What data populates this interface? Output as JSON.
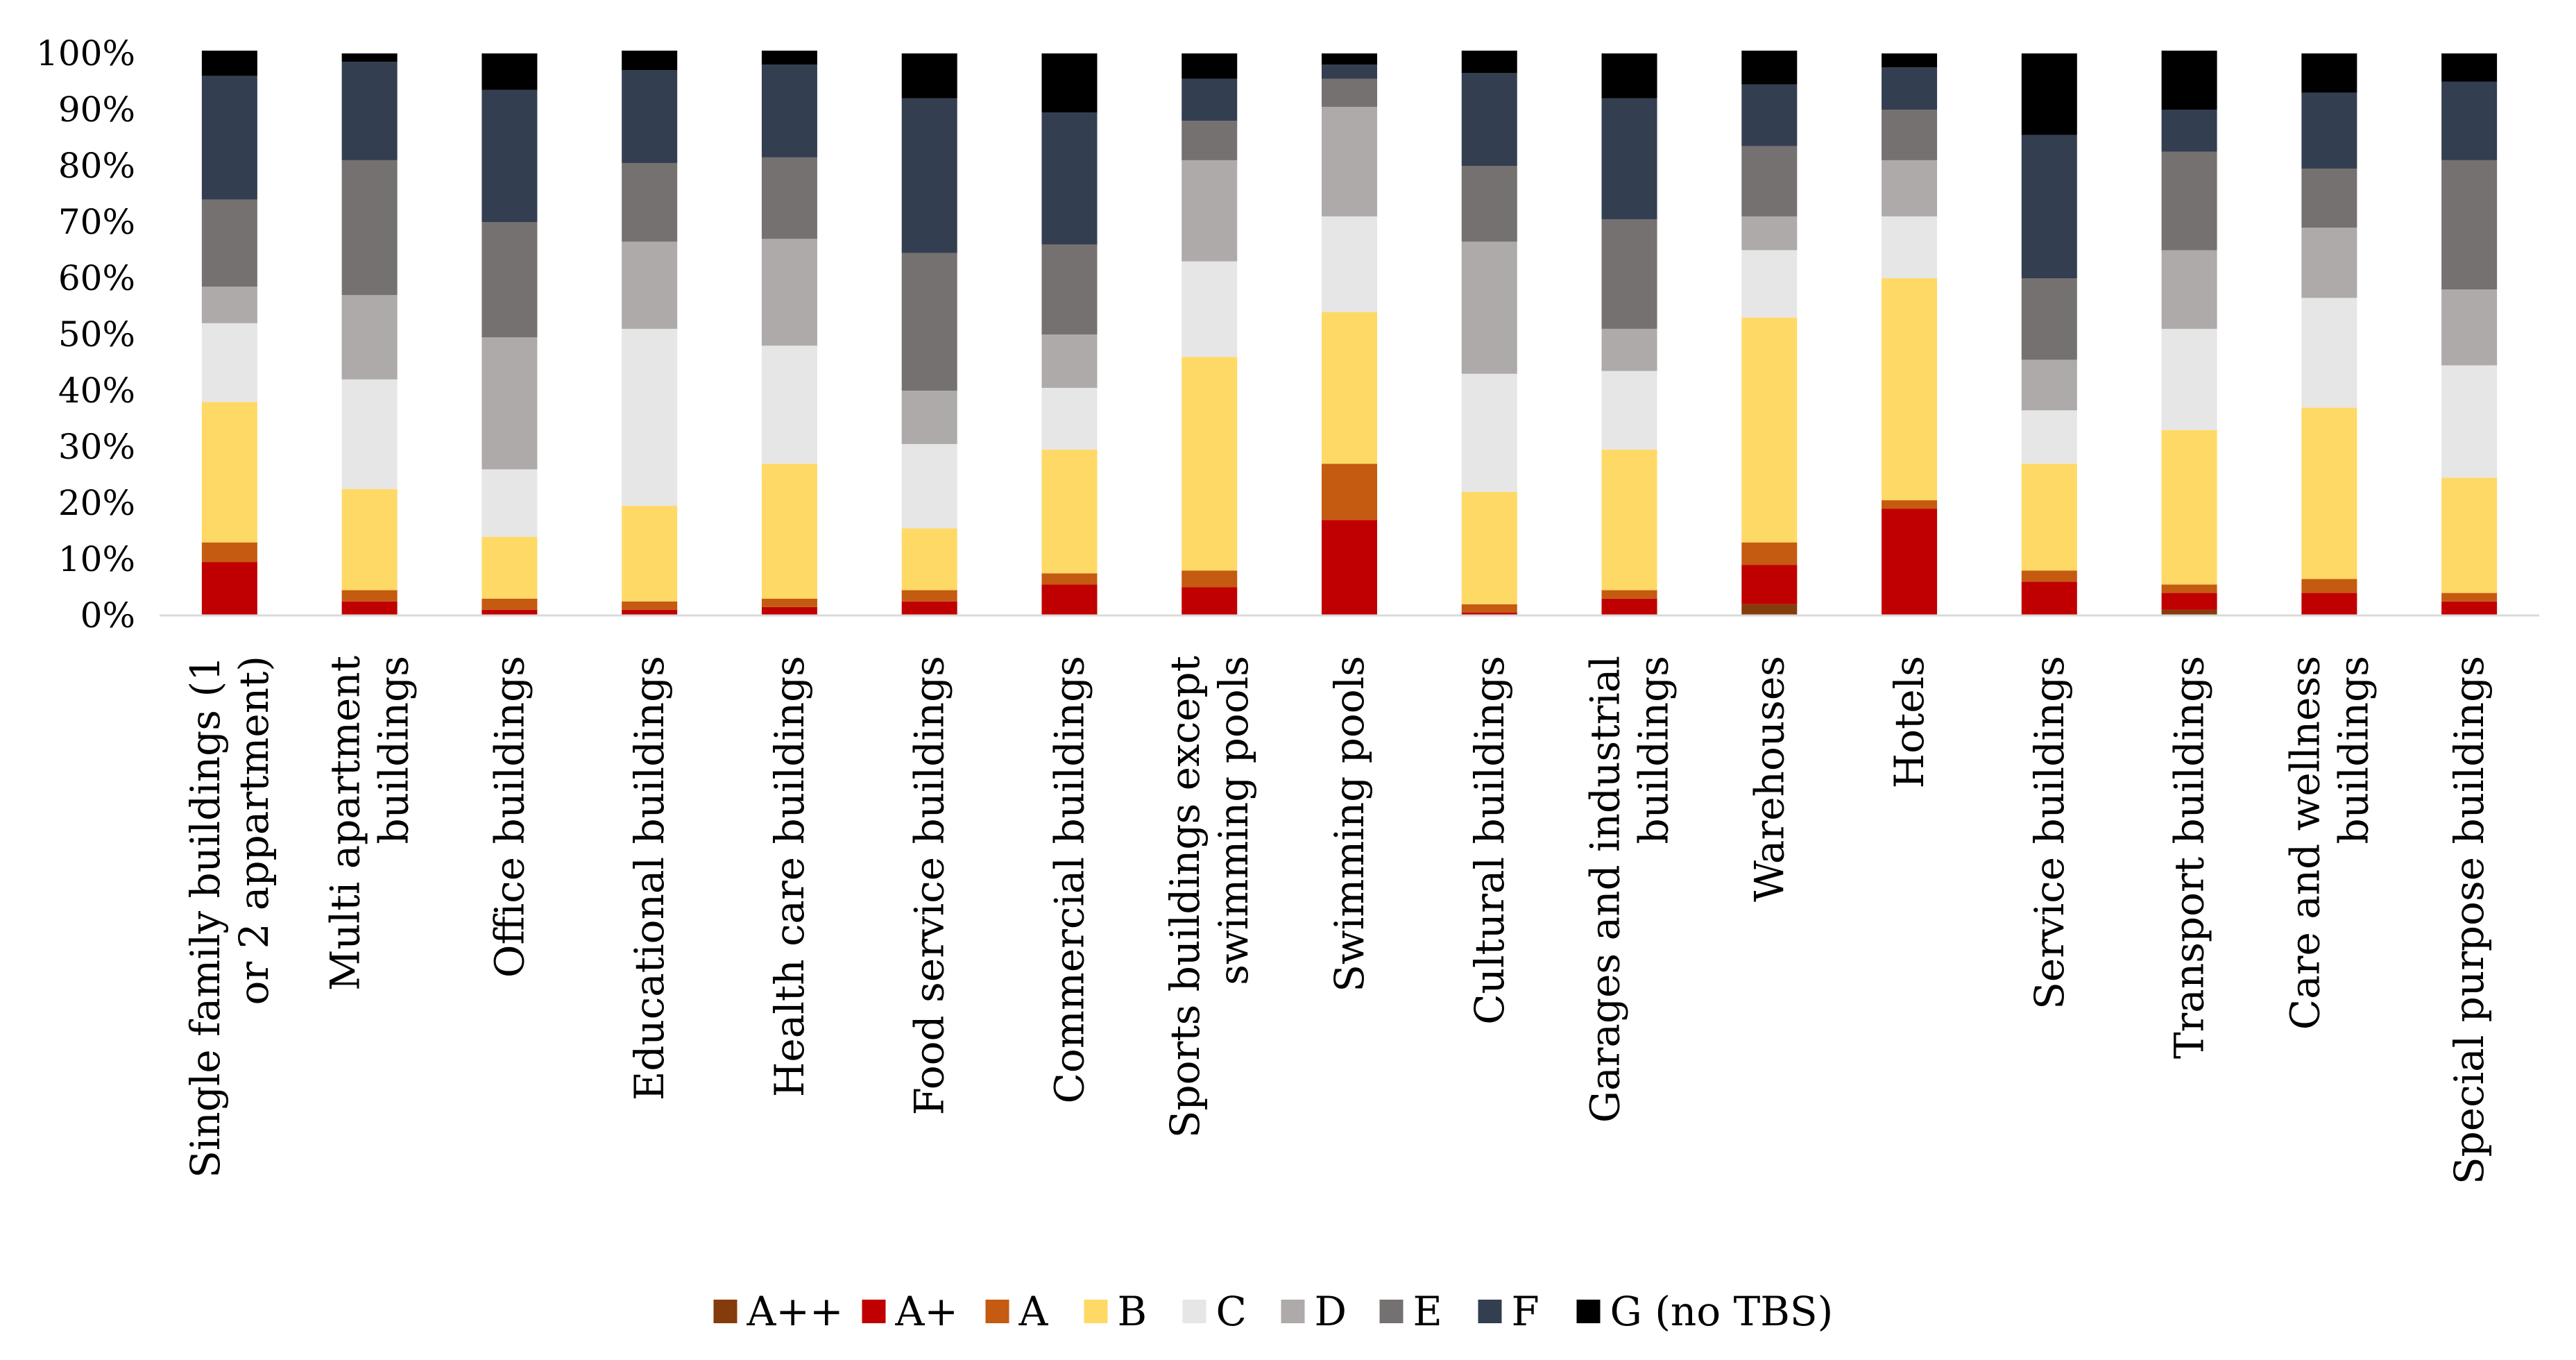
{
  "chart_data": {
    "type": "bar",
    "stacked": true,
    "normalized": true,
    "title": "",
    "xlabel": "",
    "ylabel": "",
    "ylim": [
      0,
      100
    ],
    "y_ticks": [
      "0%",
      "10%",
      "20%",
      "30%",
      "40%",
      "50%",
      "60%",
      "70%",
      "80%",
      "90%",
      "100%"
    ],
    "grid": false,
    "legend_position": "bottom",
    "categories": [
      [
        "Single family buildings (1",
        "or 2 appartment)"
      ],
      [
        "Multi apartment",
        "buildings"
      ],
      [
        "Office buildings"
      ],
      [
        "Educational buildings"
      ],
      [
        "Health care buildings"
      ],
      [
        "Food service buildings"
      ],
      [
        "Commercial buildings"
      ],
      [
        "Sports buildings except",
        "swimming pools"
      ],
      [
        "Swimming pools"
      ],
      [
        "Cultural buildings"
      ],
      [
        "Garages and industrial",
        "buildings"
      ],
      [
        "Warehouses"
      ],
      [
        "Hotels"
      ],
      [
        "Service buildings"
      ],
      [
        "Transport buildings"
      ],
      [
        "Care and wellness",
        "buildings"
      ],
      [
        "Special purpose buildings"
      ]
    ],
    "series": [
      {
        "name": "A++",
        "color": "#843c0c",
        "values": [
          0,
          0,
          0,
          0,
          0,
          0,
          0,
          0,
          0,
          0,
          0,
          2,
          0,
          0,
          1,
          0,
          0
        ]
      },
      {
        "name": "A+",
        "color": "#c00000",
        "values": [
          9.5,
          2.5,
          1,
          1,
          1.5,
          2.5,
          5.5,
          5,
          17,
          0.5,
          3,
          7,
          19,
          6,
          3,
          4,
          2.5
        ]
      },
      {
        "name": "A",
        "color": "#c55a11",
        "values": [
          3.5,
          2,
          2,
          1.5,
          1.5,
          2,
          2,
          3,
          10,
          1.5,
          1.5,
          4,
          1.5,
          2,
          1.5,
          2.5,
          1.5
        ]
      },
      {
        "name": "B",
        "color": "#ffd966",
        "values": [
          25,
          18,
          11,
          17,
          24,
          11,
          22,
          38,
          27,
          20,
          25,
          40,
          39.5,
          19,
          27.5,
          30.5,
          20.5
        ]
      },
      {
        "name": "C",
        "color": "#e7e6e6",
        "values": [
          14,
          19.5,
          12,
          31.5,
          21,
          15,
          11,
          17,
          17,
          21,
          14,
          12,
          11,
          9.5,
          18,
          19.5,
          20
        ]
      },
      {
        "name": "D",
        "color": "#aeaaaa",
        "values": [
          6.5,
          15,
          23.5,
          15.5,
          19,
          9.5,
          9.5,
          18,
          19.5,
          23.5,
          7.5,
          6,
          10,
          9,
          14,
          12.5,
          13.5
        ]
      },
      {
        "name": "E",
        "color": "#767171",
        "values": [
          15.5,
          24,
          20.5,
          14,
          14.5,
          24.5,
          16,
          7,
          5,
          13.5,
          19.5,
          12.5,
          9,
          14.5,
          17.5,
          10.5,
          23
        ]
      },
      {
        "name": "F",
        "color": "#333f50",
        "values": [
          22,
          17.5,
          23.5,
          16.5,
          16.5,
          27.5,
          23.5,
          7.5,
          2.5,
          16.5,
          21.5,
          11,
          7.5,
          25.5,
          7.5,
          13.5,
          14
        ]
      },
      {
        "name": "G (no TBS)",
        "color": "#000000",
        "values": [
          4.5,
          1.5,
          6.5,
          3.5,
          2.5,
          8,
          10.5,
          4.5,
          2,
          4,
          8,
          6,
          2.5,
          14.5,
          10.5,
          7,
          5
        ]
      }
    ]
  }
}
